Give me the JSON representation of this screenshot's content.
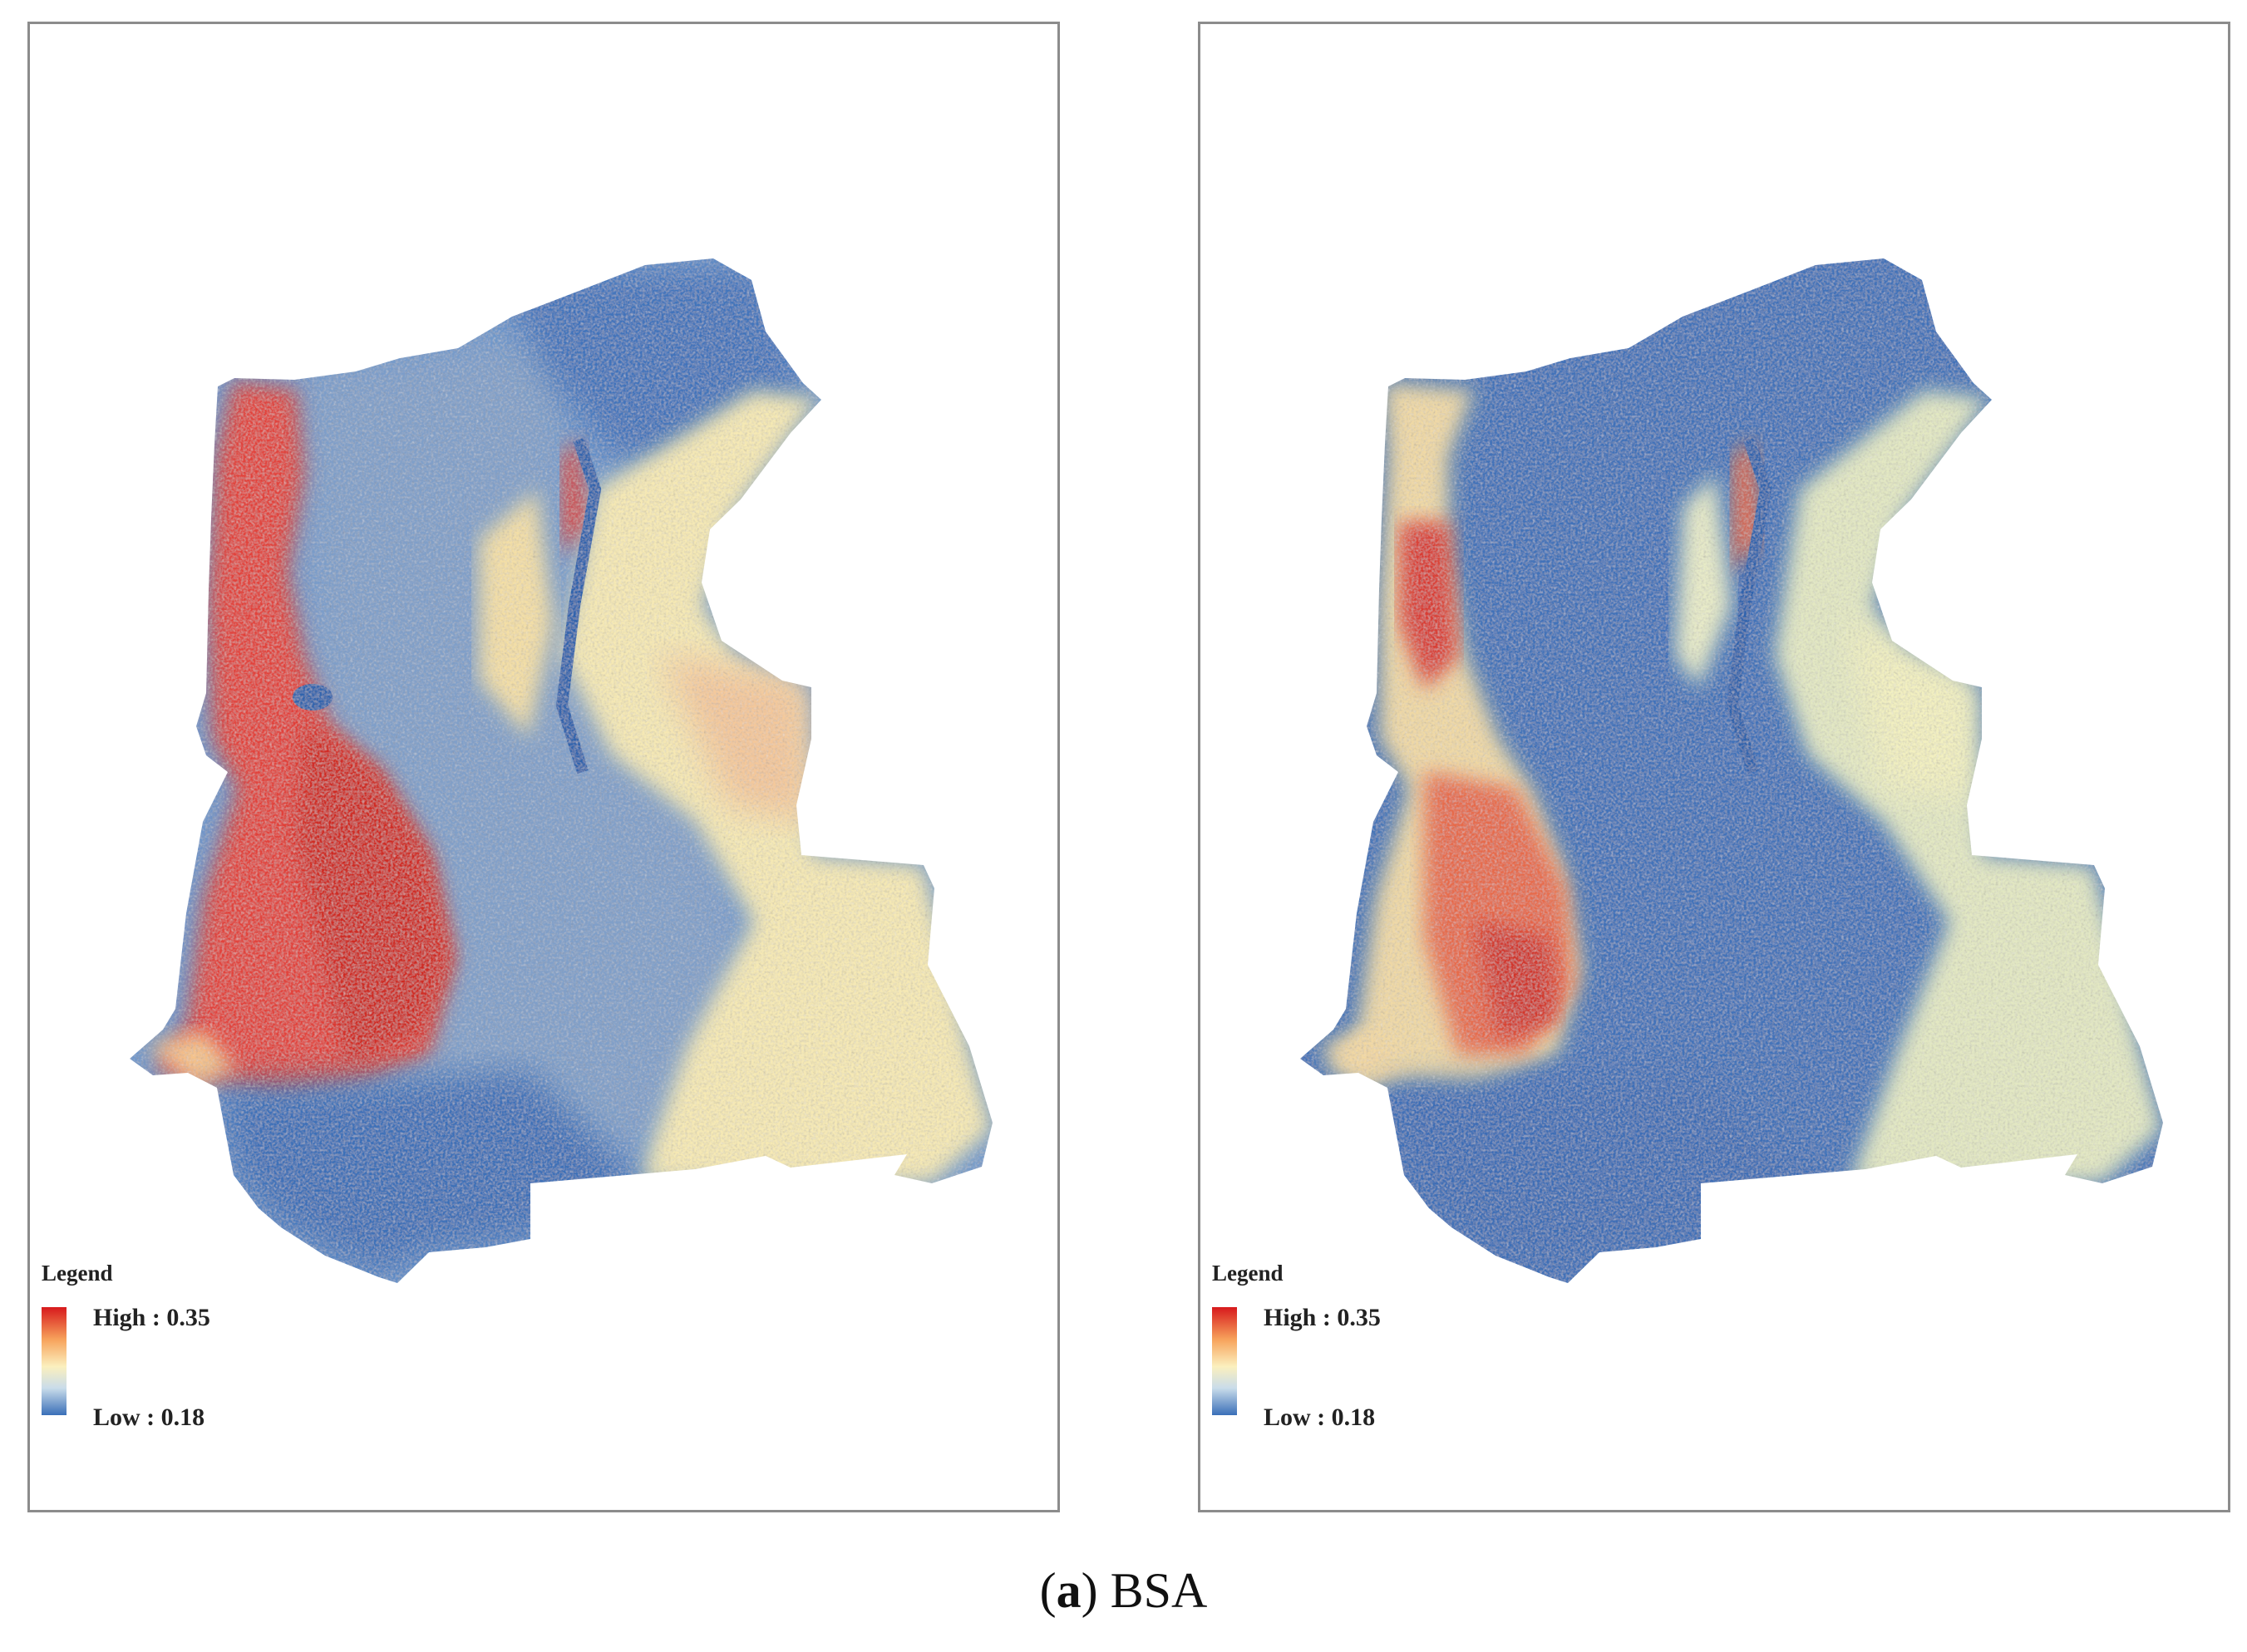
{
  "panels": [
    {
      "legend": {
        "title": "Legend",
        "high_label": "High : 0.35",
        "low_label": "Low : 0.18"
      }
    },
    {
      "legend": {
        "title": "Legend",
        "high_label": "High : 0.35",
        "low_label": "Low : 0.18"
      }
    }
  ],
  "legend_ramp": {
    "high_value": 0.35,
    "low_value": 0.18,
    "high_color": "#d7191c",
    "mid_color": "#fbf0be",
    "low_color": "#3a6fb8"
  },
  "caption": {
    "label": "a",
    "text": "BSA"
  }
}
